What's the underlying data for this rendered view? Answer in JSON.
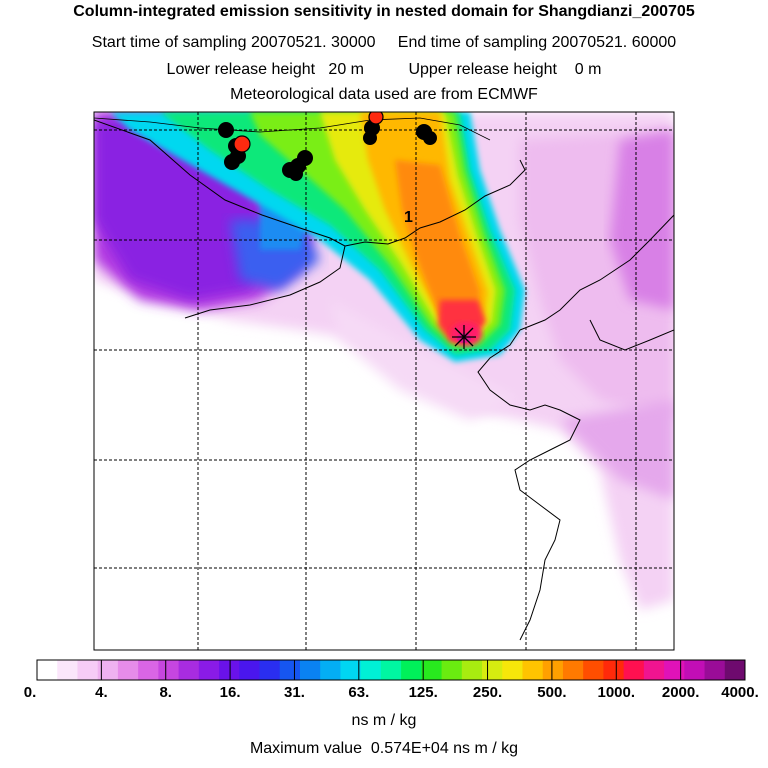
{
  "header": {
    "title": "Column-integrated emission sensitivity in nested domain for Shangdianzi_200705",
    "line2": "Start time of sampling 20070521. 30000     End time of sampling 20070521. 60000",
    "line3": "Lower release height   20 m          Upper release height    0 m",
    "line4": "Meteorological data used are from ECMWF"
  },
  "map": {
    "contour_label": "1",
    "receptor_marker": "star-receptor"
  },
  "colorbar": {
    "colors": [
      "#ffffff",
      "#fbe6fb",
      "#f6ccf6",
      "#efb2f0",
      "#e68ce9",
      "#d965e5",
      "#c646e0",
      "#a82ce0",
      "#8a1be6",
      "#6a12ea",
      "#4a16ee",
      "#2a2ef0",
      "#1656f0",
      "#0a82f2",
      "#04aef4",
      "#00d6f2",
      "#00f0d6",
      "#00f6a2",
      "#00f05a",
      "#28ea1e",
      "#6aec10",
      "#a8ec10",
      "#d6ec10",
      "#f6e60a",
      "#ffc400",
      "#ffa000",
      "#ff7a00",
      "#ff4e00",
      "#ff2a0a",
      "#ff1050",
      "#f01490",
      "#e012b8",
      "#c20eb6",
      "#9a0c98",
      "#6e0a6e"
    ],
    "tick_labels": [
      "0.",
      "4.",
      "8.",
      "16.",
      "31.",
      "63.",
      "125.",
      "250.",
      "500.",
      "1000.",
      "2000.",
      "4000."
    ]
  },
  "units": "ns m / kg",
  "max_value": "Maximum value  0.574E+04 ns m / kg"
}
